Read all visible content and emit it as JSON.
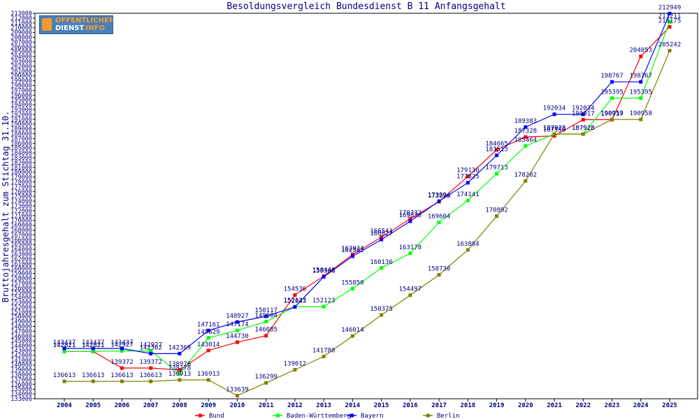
{
  "logo": {
    "line1": "OFFENTLICHER",
    "line2": "DIENST",
    "line2_suffix": ".INFO"
  },
  "chart_data": {
    "type": "line",
    "title": "Besoldungsvergleich Bundesdienst B 11 Anfangsgehalt",
    "xlabel": "",
    "ylabel": "Bruttojahresgehalt zum Stichtag 31.10.",
    "ylim": [
      133000,
      213000
    ],
    "y_tick_step": 1000,
    "grid": false,
    "legend_position": "bottom",
    "categories": [
      "2004",
      "2005",
      "2006",
      "2007",
      "2008",
      "2009",
      "2010",
      "2011",
      "2012",
      "2013",
      "2014",
      "2015",
      "2016",
      "2017",
      "2018",
      "2019",
      "2020",
      "2021",
      "2022",
      "2023",
      "2024",
      "2025"
    ],
    "series": [
      {
        "name": "Bund",
        "color": "#ff0000",
        "values": [
          142821,
          142821,
          139372,
          139372,
          138976,
          143014,
          144730,
          146085,
          154536,
          158446,
          162934,
          166541,
          170332,
          173896,
          179130,
          184665,
          187328,
          187556,
          190917,
          190917,
          204053,
          210175
        ]
      },
      {
        "name": "Baden-Württemberg",
        "color": "#00ff00",
        "values": [
          142821,
          142821,
          142927,
          142927,
          138178,
          145629,
          147174,
          149004,
          152123,
          152123,
          155850,
          160136,
          163178,
          169604,
          174141,
          179713,
          185464,
          187928,
          187928,
          195395,
          195395,
          211211
        ]
      },
      {
        "name": "Bayern",
        "color": "#0000ff",
        "values": [
          143437,
          143437,
          143437,
          142362,
          142369,
          147161,
          148927,
          150117,
          152043,
          158306,
          162582,
          166027,
          169836,
          173994,
          177825,
          183513,
          189383,
          192034,
          192034,
          198767,
          198767,
          212949
        ]
      },
      {
        "name": "Berlin",
        "color": "#808000",
        "values": [
          136613,
          136613,
          136613,
          136613,
          136913,
          136913,
          133639,
          136299,
          139012,
          141780,
          146014,
          150375,
          154497,
          158730,
          163884,
          170892,
          178202,
          187928,
          187928,
          190959,
          190958,
          205242
        ]
      }
    ]
  }
}
